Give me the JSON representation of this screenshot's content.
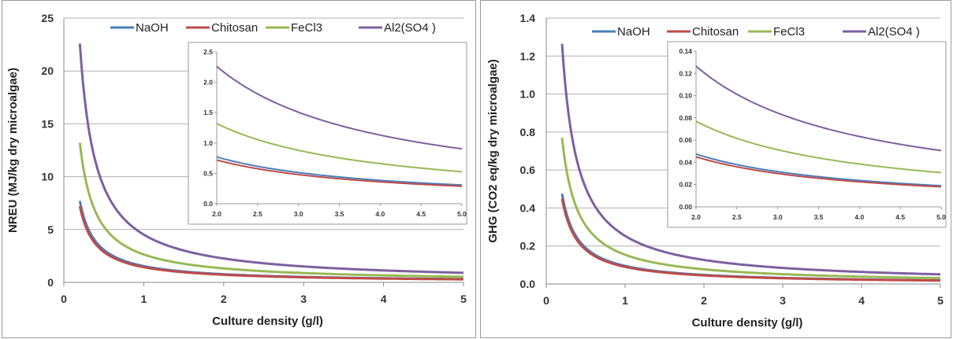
{
  "colors": {
    "NaOH": "#4a7ebb",
    "Chitosan": "#be4b48",
    "FeCl3": "#98b954",
    "Al2(SO4 )": "#7d60a0"
  },
  "chart_data": [
    {
      "type": "line",
      "title": "",
      "xlabel": "Culture density (g/l)",
      "ylabel": "NREU (MJ/kg dry microalgae)",
      "xlim": [
        0,
        5
      ],
      "ylim": [
        0,
        25
      ],
      "xticks": [
        0,
        1,
        2,
        3,
        4,
        5
      ],
      "yticks": [
        0,
        5,
        10,
        15,
        20,
        25
      ],
      "grid": "horizontal",
      "legend": "top",
      "x": [
        0.2,
        0.3,
        0.4,
        0.5,
        0.75,
        1,
        1.5,
        2,
        2.5,
        3,
        3.5,
        4,
        4.5,
        5
      ],
      "series": [
        {
          "name": "NaOH",
          "values": [
            7.7,
            5.1,
            3.85,
            3.08,
            2.05,
            1.54,
            1.03,
            0.77,
            0.62,
            0.51,
            0.44,
            0.39,
            0.34,
            0.31
          ]
        },
        {
          "name": "Chitosan",
          "values": [
            7.2,
            4.8,
            3.6,
            2.88,
            1.92,
            1.44,
            0.96,
            0.72,
            0.58,
            0.48,
            0.41,
            0.36,
            0.32,
            0.29
          ]
        },
        {
          "name": "FeCl3",
          "values": [
            13.2,
            8.8,
            6.6,
            5.28,
            3.52,
            2.64,
            1.76,
            1.32,
            1.06,
            0.88,
            0.75,
            0.66,
            0.59,
            0.53
          ]
        },
        {
          "name": "Al2(SO4 )",
          "values": [
            22.6,
            15.1,
            11.3,
            9.04,
            6.03,
            4.52,
            3.01,
            2.26,
            1.81,
            1.51,
            1.29,
            1.13,
            1.0,
            0.9
          ]
        }
      ],
      "inset": {
        "xlim": [
          2.0,
          5.0
        ],
        "ylim": [
          0.0,
          2.5
        ],
        "xticks": [
          "2.0",
          "2.5",
          "3.0",
          "3.5",
          "4.0",
          "4.5",
          "5.0"
        ],
        "yticks": [
          "0.0",
          "0.5",
          "1.0",
          "1.5",
          "2.0",
          "2.5"
        ]
      }
    },
    {
      "type": "line",
      "title": "",
      "xlabel": "Culture density (g/l)",
      "ylabel": "GHG (CO2 eq/kg dry microalgae)",
      "xlim": [
        0,
        5
      ],
      "ylim": [
        0,
        1.4
      ],
      "xticks": [
        0,
        1,
        2,
        3,
        4,
        5
      ],
      "yticks": [
        "0.0",
        "0.2",
        "0.4",
        "0.6",
        "0.8",
        "1.0",
        "1.2",
        "1.4"
      ],
      "grid": "horizontal",
      "legend": "top",
      "x": [
        0.2,
        0.3,
        0.4,
        0.5,
        0.75,
        1,
        1.5,
        2,
        2.5,
        3,
        3.5,
        4,
        4.5,
        5
      ],
      "series": [
        {
          "name": "NaOH",
          "values": [
            0.475,
            0.317,
            0.238,
            0.19,
            0.127,
            0.095,
            0.063,
            0.0475,
            0.038,
            0.0317,
            0.0271,
            0.0238,
            0.0211,
            0.019
          ]
        },
        {
          "name": "Chitosan",
          "values": [
            0.45,
            0.3,
            0.225,
            0.18,
            0.12,
            0.09,
            0.06,
            0.045,
            0.036,
            0.03,
            0.0257,
            0.0225,
            0.02,
            0.018
          ]
        },
        {
          "name": "FeCl3",
          "values": [
            0.77,
            0.513,
            0.385,
            0.308,
            0.205,
            0.154,
            0.103,
            0.077,
            0.0616,
            0.0513,
            0.044,
            0.0385,
            0.0342,
            0.0308
          ]
        },
        {
          "name": "Al2(SO4 )",
          "values": [
            1.265,
            0.843,
            0.633,
            0.506,
            0.337,
            0.253,
            0.169,
            0.1265,
            0.1012,
            0.0843,
            0.0723,
            0.0633,
            0.0562,
            0.0506
          ]
        }
      ],
      "inset": {
        "xlim": [
          2.0,
          5.0
        ],
        "ylim": [
          0.0,
          0.14
        ],
        "xticks": [
          "2.0",
          "2.5",
          "3.0",
          "3.5",
          "4.0",
          "4.5",
          "5.0"
        ],
        "yticks": [
          "0.00",
          "0.02",
          "0.04",
          "0.06",
          "0.08",
          "0.10",
          "0.12",
          "0.14"
        ]
      }
    }
  ]
}
